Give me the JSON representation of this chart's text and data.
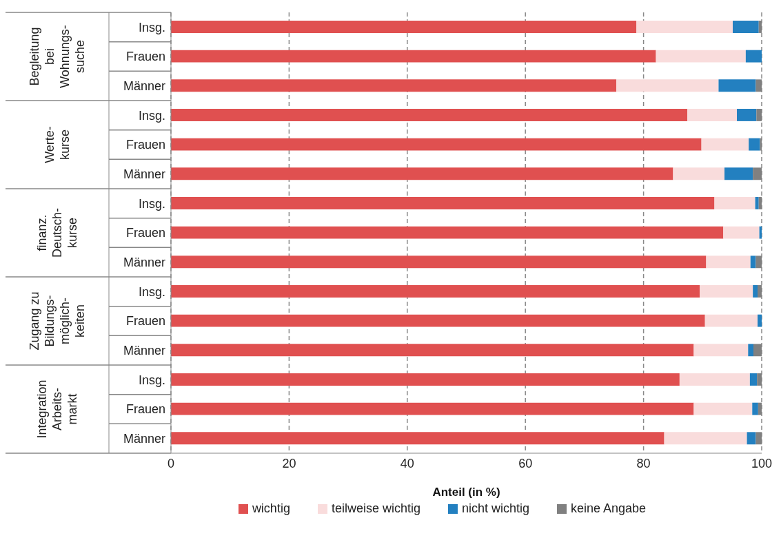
{
  "chart_data": {
    "type": "bar",
    "orientation": "horizontal",
    "stacked": true,
    "categories": [
      "Insg.",
      "Frauen",
      "Männer",
      "Insg.",
      "Frauen",
      "Männer",
      "Insg.",
      "Frauen",
      "Männer",
      "Insg.",
      "Frauen",
      "Männer",
      "Insg.",
      "Frauen",
      "Männer"
    ],
    "series": [
      {
        "name": "wichtig",
        "color": "#e05050",
        "values": [
          78.8,
          82.1,
          75.4,
          87.4,
          89.8,
          85.0,
          92.0,
          93.5,
          90.6,
          89.5,
          90.4,
          88.5,
          86.1,
          88.5,
          83.5
        ]
      },
      {
        "name": "teilweise wichtig",
        "color": "#f9dcdc",
        "values": [
          16.3,
          15.2,
          17.3,
          8.4,
          8.0,
          8.7,
          6.9,
          6.1,
          7.5,
          9.0,
          8.9,
          9.2,
          11.9,
          9.9,
          14.0
        ]
      },
      {
        "name": "nicht wichtig",
        "color": "#2380c0",
        "values": [
          4.4,
          2.7,
          6.3,
          3.3,
          1.9,
          4.8,
          0.6,
          0.4,
          0.9,
          0.8,
          0.7,
          0.9,
          1.2,
          1.0,
          1.5
        ]
      },
      {
        "name": "keine Angabe",
        "color": "#808080",
        "values": [
          0.5,
          0.0,
          1.0,
          0.9,
          0.3,
          1.5,
          0.5,
          0.0,
          1.0,
          0.7,
          0.0,
          1.4,
          0.8,
          0.6,
          1.0
        ]
      }
    ],
    "xlim": [
      0,
      100
    ],
    "xticks": [
      0,
      20,
      40,
      60,
      80,
      100
    ],
    "xlabel": "Anteil (in %)",
    "grid": "x",
    "legend": "bottom",
    "annotations": [
      "Begleitung\nbei\nWohnungs-\nsuche",
      "Werte-\nkurse",
      "finanz.\nDeutsch-\nkurse",
      "Zugang zu\nBildungs-\nmöglich-\nkeiten",
      "Integration\nArbeits-\nmarkt"
    ]
  }
}
